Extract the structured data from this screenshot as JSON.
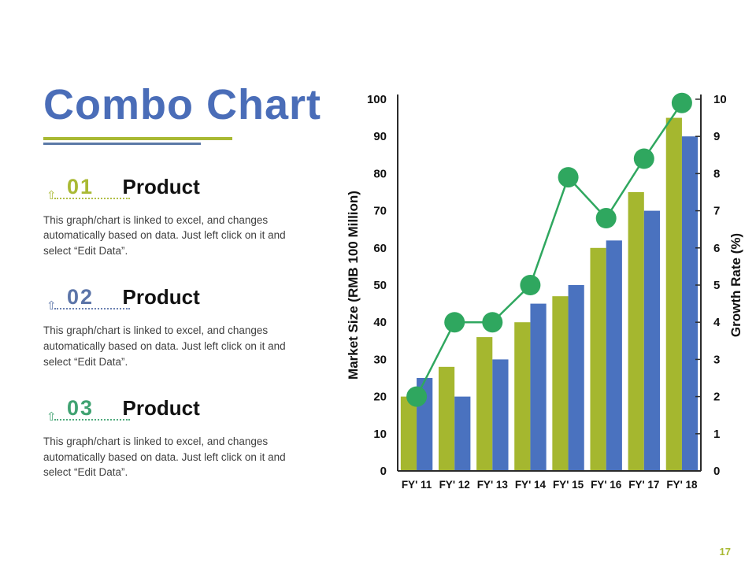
{
  "slide": {
    "title": "Combo Chart",
    "page_number": "17"
  },
  "colors": {
    "title_blue": "#4a6db8",
    "underline_olive": "#a9b933",
    "underline_blue": "#5b79a6",
    "text_dark": "#111111",
    "text_gray": "#3f3f3f",
    "axis_dark": "#2b2b2b",
    "page_number_olive": "#a9b933"
  },
  "products": [
    {
      "number": "01",
      "title": "Product",
      "description": "This graph/chart is linked to excel, and changes automatically based on data. Just left click on it and select “Edit Data”.",
      "accent_color": "#a9b933"
    },
    {
      "number": "02",
      "title": "Product",
      "description": "This graph/chart is linked to excel, and changes automatically based on data. Just left click on it and select “Edit Data”.",
      "accent_color": "#5b74a8"
    },
    {
      "number": "03",
      "title": "Product",
      "description": "This graph/chart is linked to excel, and changes automatically based on data. Just left click on it and select “Edit Data”.",
      "accent_color": "#3fa271"
    }
  ],
  "chart_data": {
    "type": "combo bar+line",
    "categories": [
      "FY' 11",
      "FY' 12",
      "FY' 13",
      "FY' 14",
      "FY' 15",
      "FY' 16",
      "FY' 17",
      "FY' 18"
    ],
    "series": [
      {
        "name": "market-size-series-1",
        "type": "bar",
        "axis": "left",
        "color": "#a5b72f",
        "values": [
          20,
          28,
          36,
          40,
          47,
          60,
          75,
          95
        ]
      },
      {
        "name": "market-size-series-2",
        "type": "bar",
        "axis": "left",
        "color": "#4a72bf",
        "values": [
          25,
          20,
          30,
          45,
          50,
          62,
          70,
          90
        ]
      },
      {
        "name": "growth-rate",
        "type": "line",
        "axis": "right",
        "color": "#2fa75f",
        "values": [
          2,
          4,
          4,
          5,
          7.9,
          6.8,
          8.4,
          9.9
        ]
      }
    ],
    "left_axis": {
      "label": "Market Size (RMB 100 Million)",
      "min": 0,
      "max": 100,
      "step": 10
    },
    "right_axis": {
      "label": "Growth Rate (%)",
      "min": 0,
      "max": 10,
      "step": 1
    },
    "grid": false,
    "legend": false,
    "title": ""
  }
}
